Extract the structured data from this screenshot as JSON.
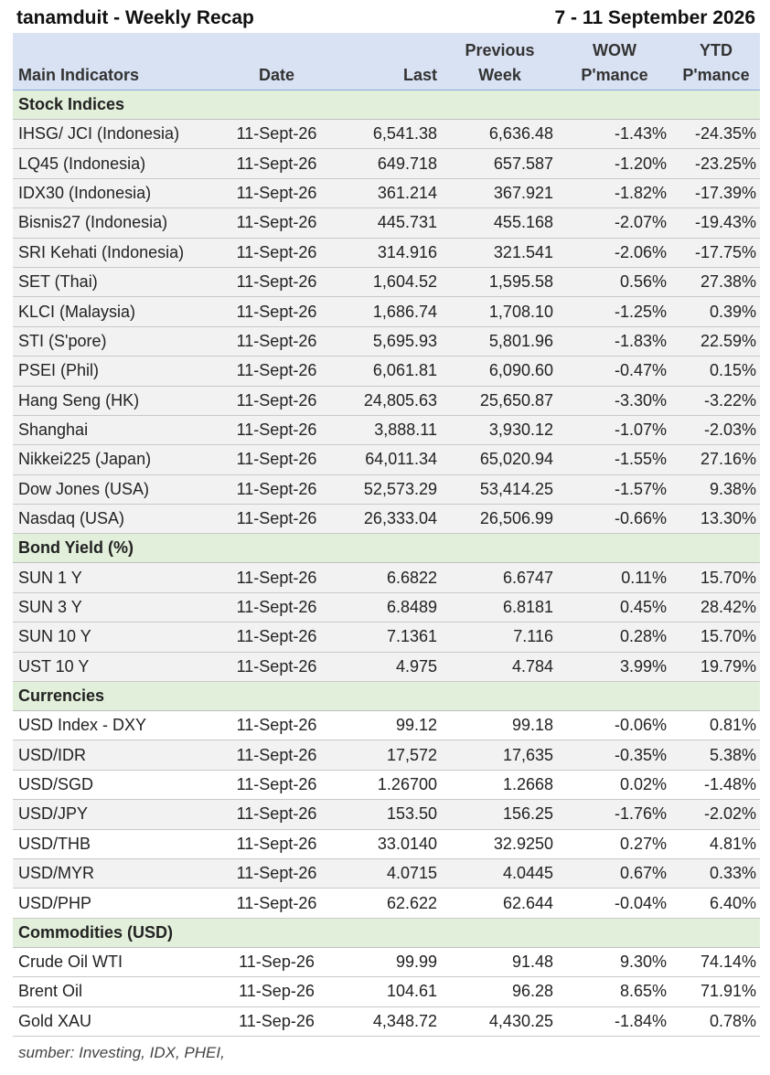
{
  "header": {
    "title": "tanamduit - Weekly Recap",
    "period": "7 - 11 September 2026"
  },
  "columns": {
    "indicator": "Main Indicators",
    "date": "Date",
    "last": "Last",
    "previous_top": "Previous",
    "previous_bottom": "Week",
    "wow_top": "WOW",
    "wow_bottom": "P'mance",
    "ytd_top": "YTD",
    "ytd_bottom": "P'mance"
  },
  "sections": [
    {
      "title": "Stock Indices",
      "rows": [
        {
          "name": "IHSG/ JCI (Indonesia)",
          "date": "11-Sept-26",
          "last": "6,541.38",
          "prev": "6,636.48",
          "wow": "-1.43%",
          "ytd": "-24.35%",
          "shade": true
        },
        {
          "name": "LQ45 (Indonesia)",
          "date": "11-Sept-26",
          "last": "649.718",
          "prev": "657.587",
          "wow": "-1.20%",
          "ytd": "-23.25%",
          "shade": true
        },
        {
          "name": "IDX30 (Indonesia)",
          "date": "11-Sept-26",
          "last": "361.214",
          "prev": "367.921",
          "wow": "-1.82%",
          "ytd": "-17.39%",
          "shade": true
        },
        {
          "name": "Bisnis27 (Indonesia)",
          "date": "11-Sept-26",
          "last": "445.731",
          "prev": "455.168",
          "wow": "-2.07%",
          "ytd": "-19.43%",
          "shade": true
        },
        {
          "name": "SRI Kehati (Indonesia)",
          "date": "11-Sept-26",
          "last": "314.916",
          "prev": "321.541",
          "wow": "-2.06%",
          "ytd": "-17.75%",
          "shade": true
        },
        {
          "name": "SET (Thai)",
          "date": "11-Sept-26",
          "last": "1,604.52",
          "prev": "1,595.58",
          "wow": "0.56%",
          "ytd": "27.38%",
          "shade": true
        },
        {
          "name": "KLCI (Malaysia)",
          "date": "11-Sept-26",
          "last": "1,686.74",
          "prev": "1,708.10",
          "wow": "-1.25%",
          "ytd": "0.39%",
          "shade": true
        },
        {
          "name": "STI (S'pore)",
          "date": "11-Sept-26",
          "last": "5,695.93",
          "prev": "5,801.96",
          "wow": "-1.83%",
          "ytd": "22.59%",
          "shade": true
        },
        {
          "name": "PSEI (Phil)",
          "date": "11-Sept-26",
          "last": "6,061.81",
          "prev": "6,090.60",
          "wow": "-0.47%",
          "ytd": "0.15%",
          "shade": true
        },
        {
          "name": "Hang Seng (HK)",
          "date": "11-Sept-26",
          "last": "24,805.63",
          "prev": "25,650.87",
          "wow": "-3.30%",
          "ytd": "-3.22%",
          "shade": true
        },
        {
          "name": "Shanghai",
          "date": "11-Sept-26",
          "last": "3,888.11",
          "prev": "3,930.12",
          "wow": "-1.07%",
          "ytd": "-2.03%",
          "shade": true
        },
        {
          "name": "Nikkei225 (Japan)",
          "date": "11-Sept-26",
          "last": "64,011.34",
          "prev": "65,020.94",
          "wow": "-1.55%",
          "ytd": "27.16%",
          "shade": true
        },
        {
          "name": "Dow Jones (USA)",
          "date": "11-Sept-26",
          "last": "52,573.29",
          "prev": "53,414.25",
          "wow": "-1.57%",
          "ytd": "9.38%",
          "shade": true
        },
        {
          "name": "Nasdaq (USA)",
          "date": "11-Sept-26",
          "last": "26,333.04",
          "prev": "26,506.99",
          "wow": "-0.66%",
          "ytd": "13.30%",
          "shade": true
        }
      ]
    },
    {
      "title": "Bond Yield (%)",
      "rows": [
        {
          "name": "SUN 1 Y",
          "date": "11-Sept-26",
          "last": "6.6822",
          "prev": "6.6747",
          "wow": "0.11%",
          "ytd": "15.70%",
          "shade": true
        },
        {
          "name": "SUN 3 Y",
          "date": "11-Sept-26",
          "last": "6.8489",
          "prev": "6.8181",
          "wow": "0.45%",
          "ytd": "28.42%",
          "shade": true
        },
        {
          "name": "SUN 10 Y",
          "date": "11-Sept-26",
          "last": "7.1361",
          "prev": "7.116",
          "wow": "0.28%",
          "ytd": "15.70%",
          "shade": true
        },
        {
          "name": "UST 10 Y",
          "date": "11-Sept-26",
          "last": "4.975",
          "prev": "4.784",
          "wow": "3.99%",
          "ytd": "19.79%",
          "shade": true
        }
      ]
    },
    {
      "title": "Currencies",
      "rows": [
        {
          "name": "USD Index - DXY",
          "date": "11-Sept-26",
          "last": "99.12",
          "prev": "99.18",
          "wow": "-0.06%",
          "ytd": "0.81%",
          "shade": false
        },
        {
          "name": "USD/IDR",
          "date": "11-Sept-26",
          "last": "17,572",
          "prev": "17,635",
          "wow": "-0.35%",
          "ytd": "5.38%",
          "shade": true
        },
        {
          "name": "USD/SGD",
          "date": "11-Sept-26",
          "last": "1.26700",
          "prev": "1.2668",
          "wow": "0.02%",
          "ytd": "-1.48%",
          "shade": false
        },
        {
          "name": "USD/JPY",
          "date": "11-Sept-26",
          "last": "153.50",
          "prev": "156.25",
          "wow": "-1.76%",
          "ytd": "-2.02%",
          "shade": true
        },
        {
          "name": "USD/THB",
          "date": "11-Sept-26",
          "last": "33.0140",
          "prev": "32.9250",
          "wow": "0.27%",
          "ytd": "4.81%",
          "shade": false
        },
        {
          "name": "USD/MYR",
          "date": "11-Sept-26",
          "last": "4.0715",
          "prev": "4.0445",
          "wow": "0.67%",
          "ytd": "0.33%",
          "shade": true
        },
        {
          "name": "USD/PHP",
          "date": "11-Sept-26",
          "last": "62.622",
          "prev": "62.644",
          "wow": "-0.04%",
          "ytd": "6.40%",
          "shade": false
        }
      ]
    },
    {
      "title": "Commodities (USD)",
      "rows": [
        {
          "name": "Crude Oil WTI",
          "date": "11-Sep-26",
          "last": "99.99",
          "prev": "91.48",
          "wow": "9.30%",
          "ytd": "74.14%",
          "shade": false
        },
        {
          "name": "Brent Oil",
          "date": "11-Sep-26",
          "last": "104.61",
          "prev": "96.28",
          "wow": "8.65%",
          "ytd": "71.91%",
          "shade": false
        },
        {
          "name": "Gold XAU",
          "date": "11-Sep-26",
          "last": "4,348.72",
          "prev": "4,430.25",
          "wow": "-1.84%",
          "ytd": "0.78%",
          "shade": false
        }
      ]
    }
  ],
  "footnote": "sumber: Investing, IDX, PHEI,"
}
